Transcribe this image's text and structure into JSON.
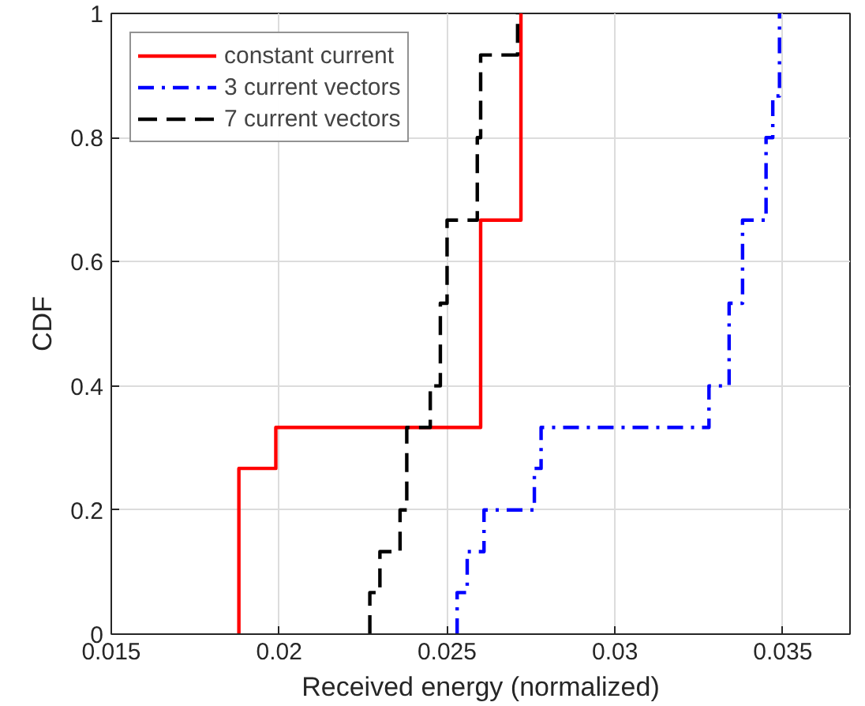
{
  "chart_data": {
    "type": "step",
    "xlabel": "Received energy (normalized)",
    "ylabel": "CDF",
    "xlim": [
      0.015,
      0.037
    ],
    "xticks": [
      0.015,
      0.02,
      0.025,
      0.03,
      0.035
    ],
    "ylim": [
      0,
      1
    ],
    "yticks": [
      0,
      0.2,
      0.4,
      0.6,
      0.8,
      1
    ],
    "grid": true,
    "legend": "top left",
    "series": [
      {
        "name": "constant current",
        "color": "#ff0000",
        "line_style": "solid",
        "x": [
          0.0188,
          0.0188,
          0.0199,
          0.026,
          0.0272
        ],
        "values": [
          0,
          0.267,
          0.333,
          0.667,
          1
        ]
      },
      {
        "name": "3 current vectors",
        "color": "#0000ff",
        "line_style": "dashdot",
        "x": [
          0.0253,
          0.0253,
          0.0256,
          0.0261,
          0.0276,
          0.0278,
          0.0328,
          0.0334,
          0.0338,
          0.0345,
          0.0347,
          0.0349
        ],
        "values": [
          0,
          0.067,
          0.133,
          0.2,
          0.267,
          0.333,
          0.4,
          0.533,
          0.667,
          0.8,
          0.867,
          1
        ]
      },
      {
        "name": "7 current vectors",
        "color": "#000000",
        "line_style": "dashed",
        "x": [
          0.0227,
          0.0227,
          0.023,
          0.0236,
          0.0238,
          0.0245,
          0.0248,
          0.025,
          0.0259,
          0.026,
          0.0271
        ],
        "values": [
          0,
          0.067,
          0.133,
          0.2,
          0.333,
          0.4,
          0.533,
          0.667,
          0.8,
          0.933,
          1
        ]
      }
    ]
  }
}
